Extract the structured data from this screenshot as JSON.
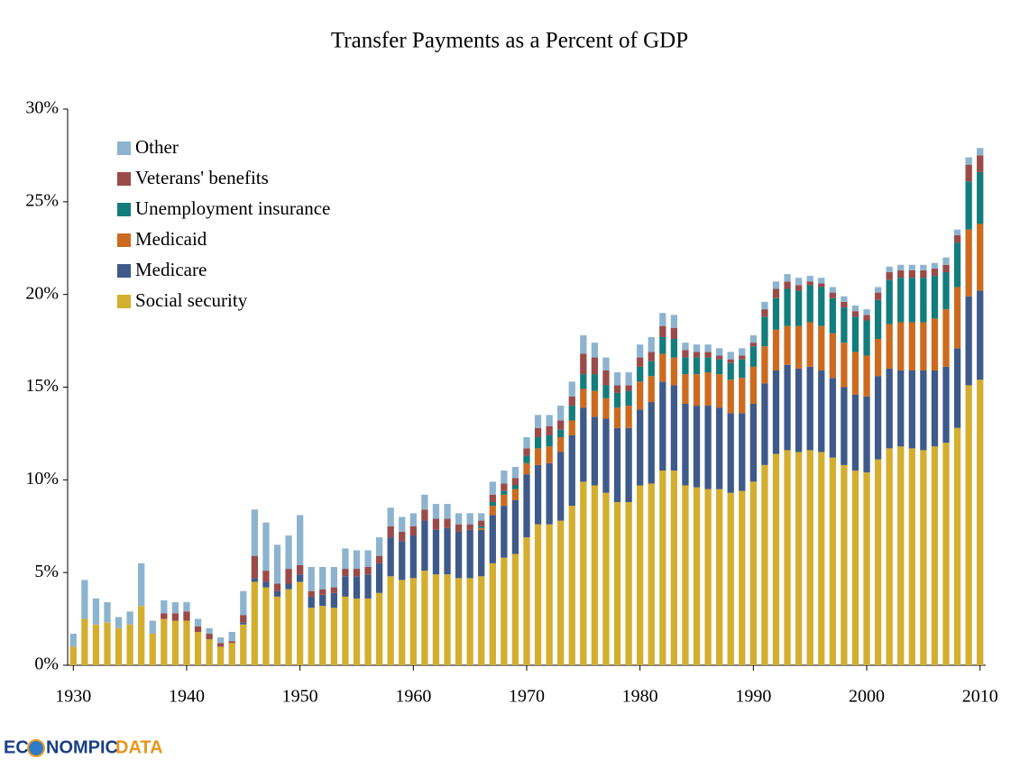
{
  "chart_data": {
    "type": "stacked-bar",
    "title": "Transfer Payments as a Percent of GDP",
    "x": [
      1930,
      1931,
      1932,
      1933,
      1934,
      1935,
      1936,
      1937,
      1938,
      1939,
      1940,
      1941,
      1942,
      1943,
      1944,
      1945,
      1946,
      1947,
      1948,
      1949,
      1950,
      1951,
      1952,
      1953,
      1954,
      1955,
      1956,
      1957,
      1958,
      1959,
      1960,
      1961,
      1962,
      1963,
      1964,
      1965,
      1966,
      1967,
      1968,
      1969,
      1970,
      1971,
      1972,
      1973,
      1974,
      1975,
      1976,
      1977,
      1978,
      1979,
      1980,
      1981,
      1982,
      1983,
      1984,
      1985,
      1986,
      1987,
      1988,
      1989,
      1990,
      1991,
      1992,
      1993,
      1994,
      1995,
      1996,
      1997,
      1998,
      1999,
      2000,
      2001,
      2002,
      2003,
      2004,
      2005,
      2006,
      2007,
      2008,
      2009,
      2010
    ],
    "series": [
      {
        "name": "Social security",
        "color": "#d4ae2f",
        "values": [
          1.0,
          2.5,
          2.2,
          2.3,
          2.0,
          2.2,
          3.2,
          1.7,
          2.5,
          2.4,
          2.4,
          1.8,
          1.4,
          1.0,
          1.2,
          2.2,
          4.5,
          4.2,
          3.7,
          4.1,
          4.5,
          3.1,
          3.2,
          3.1,
          3.7,
          3.6,
          3.6,
          3.9,
          4.8,
          4.6,
          4.7,
          5.1,
          4.9,
          4.9,
          4.7,
          4.7,
          4.8,
          5.5,
          5.8,
          6.0,
          6.9,
          7.6,
          7.6,
          7.8,
          8.6,
          9.9,
          9.7,
          9.3,
          8.8,
          8.8,
          9.7,
          9.8,
          10.5,
          10.5,
          9.7,
          9.6,
          9.5,
          9.5,
          9.3,
          9.4,
          9.9,
          10.8,
          11.4,
          11.6,
          11.5,
          11.6,
          11.5,
          11.2,
          10.8,
          10.5,
          10.4,
          11.1,
          11.7,
          11.8,
          11.7,
          11.6,
          11.8,
          12.0,
          12.8,
          15.1,
          15.4
        ]
      },
      {
        "name": "Medicare",
        "color": "#3e5a8a",
        "values": [
          0,
          0,
          0,
          0,
          0,
          0,
          0,
          0,
          0,
          0,
          0,
          0,
          0,
          0,
          0,
          0.1,
          0.2,
          0.3,
          0.3,
          0.3,
          0.4,
          0.6,
          0.6,
          0.8,
          1.1,
          1.2,
          1.3,
          1.6,
          2.1,
          2.1,
          2.3,
          2.7,
          2.4,
          2.5,
          2.5,
          2.6,
          2.5,
          2.6,
          2.8,
          2.9,
          3.4,
          3.2,
          3.3,
          3.7,
          3.8,
          4.0,
          3.7,
          4.0,
          4.0,
          4.0,
          4.1,
          4.4,
          4.8,
          4.6,
          4.4,
          4.4,
          4.5,
          4.4,
          4.3,
          4.2,
          4.2,
          4.4,
          4.5,
          4.6,
          4.5,
          4.5,
          4.4,
          4.3,
          4.2,
          4.1,
          4.1,
          4.5,
          4.3,
          4.1,
          4.2,
          4.3,
          4.1,
          4.1,
          4.3,
          4.8,
          4.8
        ]
      },
      {
        "name": "Medicaid",
        "color": "#cc6b1f",
        "values": [
          0,
          0,
          0,
          0,
          0,
          0,
          0,
          0,
          0,
          0,
          0,
          0,
          0,
          0,
          0,
          0,
          0,
          0,
          0,
          0,
          0,
          0,
          0,
          0,
          0,
          0,
          0,
          0,
          0,
          0,
          0,
          0,
          0,
          0,
          0,
          0,
          0.1,
          0.5,
          0.6,
          0.6,
          0.6,
          0.9,
          0.9,
          0.8,
          0.8,
          1.0,
          1.4,
          1.1,
          1.1,
          1.2,
          1.5,
          1.4,
          1.5,
          1.5,
          1.6,
          1.7,
          1.8,
          1.8,
          1.8,
          1.9,
          2.0,
          2.0,
          2.2,
          2.1,
          2.3,
          2.4,
          2.4,
          2.4,
          2.4,
          2.3,
          2.2,
          2.0,
          2.4,
          2.6,
          2.6,
          2.6,
          2.8,
          3.1,
          3.3,
          3.6,
          3.6
        ]
      },
      {
        "name": "Unemployment insurance",
        "color": "#127d7c",
        "values": [
          0,
          0,
          0,
          0,
          0,
          0,
          0,
          0,
          0,
          0,
          0,
          0,
          0,
          0,
          0,
          0,
          0,
          0,
          0,
          0,
          0,
          0,
          0,
          0,
          0,
          0,
          0,
          0,
          0,
          0,
          0,
          0,
          0,
          0,
          0,
          0,
          0.1,
          0.2,
          0.2,
          0.2,
          0.4,
          0.6,
          0.6,
          0.4,
          0.8,
          0.8,
          0.9,
          0.7,
          0.8,
          0.8,
          0.8,
          0.8,
          0.9,
          1.0,
          0.9,
          0.9,
          0.8,
          0.8,
          0.9,
          1.0,
          1.1,
          1.6,
          1.7,
          2.0,
          1.9,
          2.0,
          2.1,
          1.9,
          1.9,
          1.9,
          1.9,
          2.1,
          2.4,
          2.4,
          2.4,
          2.4,
          2.3,
          2.0,
          2.4,
          2.6,
          2.8
        ]
      },
      {
        "name": "Veterans' benefits",
        "color": "#9a4a48",
        "values": [
          0,
          0,
          0,
          0,
          0,
          0,
          0,
          0,
          0.3,
          0.4,
          0.5,
          0.3,
          0.3,
          0.2,
          0.1,
          0.4,
          1.2,
          0.6,
          0.4,
          0.8,
          0.5,
          0.3,
          0.3,
          0.3,
          0.4,
          0.4,
          0.4,
          0.4,
          0.6,
          0.5,
          0.5,
          0.6,
          0.6,
          0.5,
          0.4,
          0.3,
          0.3,
          0.4,
          0.4,
          0.4,
          0.4,
          0.5,
          0.5,
          0.5,
          0.5,
          1.1,
          0.9,
          0.8,
          0.4,
          0.3,
          0.5,
          0.5,
          0.6,
          0.6,
          0.4,
          0.3,
          0.3,
          0.2,
          0.2,
          0.2,
          0.2,
          0.4,
          0.5,
          0.4,
          0.3,
          0.2,
          0.2,
          0.3,
          0.3,
          0.3,
          0.3,
          0.4,
          0.4,
          0.4,
          0.4,
          0.4,
          0.4,
          0.4,
          0.4,
          0.9,
          0.9
        ]
      },
      {
        "name": "Other",
        "color": "#8db4cf",
        "values": [
          0.7,
          2.1,
          1.4,
          1.1,
          0.6,
          0.7,
          2.3,
          0.7,
          0.7,
          0.6,
          0.5,
          0.4,
          0.3,
          0.3,
          0.5,
          1.3,
          2.5,
          2.6,
          2.1,
          1.8,
          2.7,
          1.3,
          1.2,
          1.1,
          1.1,
          1.0,
          0.9,
          1.0,
          1.0,
          0.8,
          0.7,
          0.8,
          0.8,
          0.8,
          0.6,
          0.6,
          0.4,
          0.7,
          0.7,
          0.6,
          0.6,
          0.7,
          0.6,
          0.8,
          0.8,
          1.0,
          0.8,
          0.7,
          0.7,
          0.7,
          0.7,
          0.8,
          0.7,
          0.7,
          0.4,
          0.4,
          0.4,
          0.4,
          0.4,
          0.4,
          0.4,
          0.4,
          0.4,
          0.4,
          0.4,
          0.3,
          0.3,
          0.3,
          0.3,
          0.3,
          0.3,
          0.3,
          0.3,
          0.3,
          0.3,
          0.3,
          0.3,
          0.4,
          0.3,
          0.4,
          0.4
        ]
      }
    ],
    "xlim": [
      1929.5,
      2010.5
    ],
    "xticks": [
      1930,
      1940,
      1950,
      1960,
      1970,
      1980,
      1990,
      2000,
      2010
    ],
    "ylim": [
      0,
      30
    ],
    "yticks": [
      {
        "value": 0,
        "label": "0%"
      },
      {
        "value": 5,
        "label": "5%"
      },
      {
        "value": 10,
        "label": "10%"
      },
      {
        "value": 15,
        "label": "15%"
      },
      {
        "value": 20,
        "label": "20%"
      },
      {
        "value": 25,
        "label": "25%"
      },
      {
        "value": 30,
        "label": "30%"
      }
    ],
    "grid": false,
    "legend": "top-left"
  },
  "logo": {
    "left": "EC",
    "middle": "NOMPIC",
    "right": "DATA"
  }
}
